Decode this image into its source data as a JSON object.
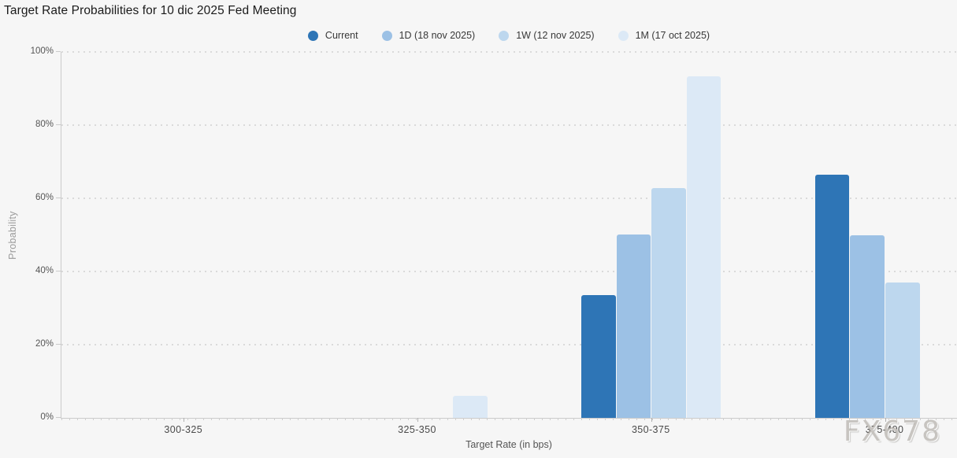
{
  "title": "Target Rate Probabilities for 10 dic 2025 Fed Meeting",
  "watermark": "FX678",
  "chart_data": {
    "type": "bar",
    "categories": [
      "300-325",
      "325-350",
      "350-375",
      "375-400"
    ],
    "series": [
      {
        "name": "Current",
        "color": "#2e75b6",
        "values": [
          0,
          0,
          33.5,
          66.5
        ]
      },
      {
        "name": "1D (18 nov 2025)",
        "color": "#9cc1e5",
        "values": [
          0,
          0,
          50.1,
          49.9
        ]
      },
      {
        "name": "1W (12 nov 2025)",
        "color": "#bdd7ee",
        "values": [
          0,
          0,
          62.7,
          36.9
        ]
      },
      {
        "name": "1M (17 oct 2025)",
        "color": "#dce9f6",
        "values": [
          0,
          6.0,
          93.4,
          0
        ]
      }
    ],
    "title": "Target Rate Probabilities for 10 dic 2025 Fed Meeting",
    "xlabel": "Target Rate (in bps)",
    "ylabel": "Probability",
    "ylim": [
      0,
      100
    ],
    "yticks": [
      "0%",
      "20%",
      "40%",
      "60%",
      "80%",
      "100%"
    ],
    "ytick_values": [
      0,
      20,
      40,
      60,
      80,
      100
    ],
    "grid": "horizontal-dotted",
    "legend_position": "top-center",
    "category_centers_pct": [
      13.7,
      39.8,
      65.9,
      92.0
    ]
  }
}
